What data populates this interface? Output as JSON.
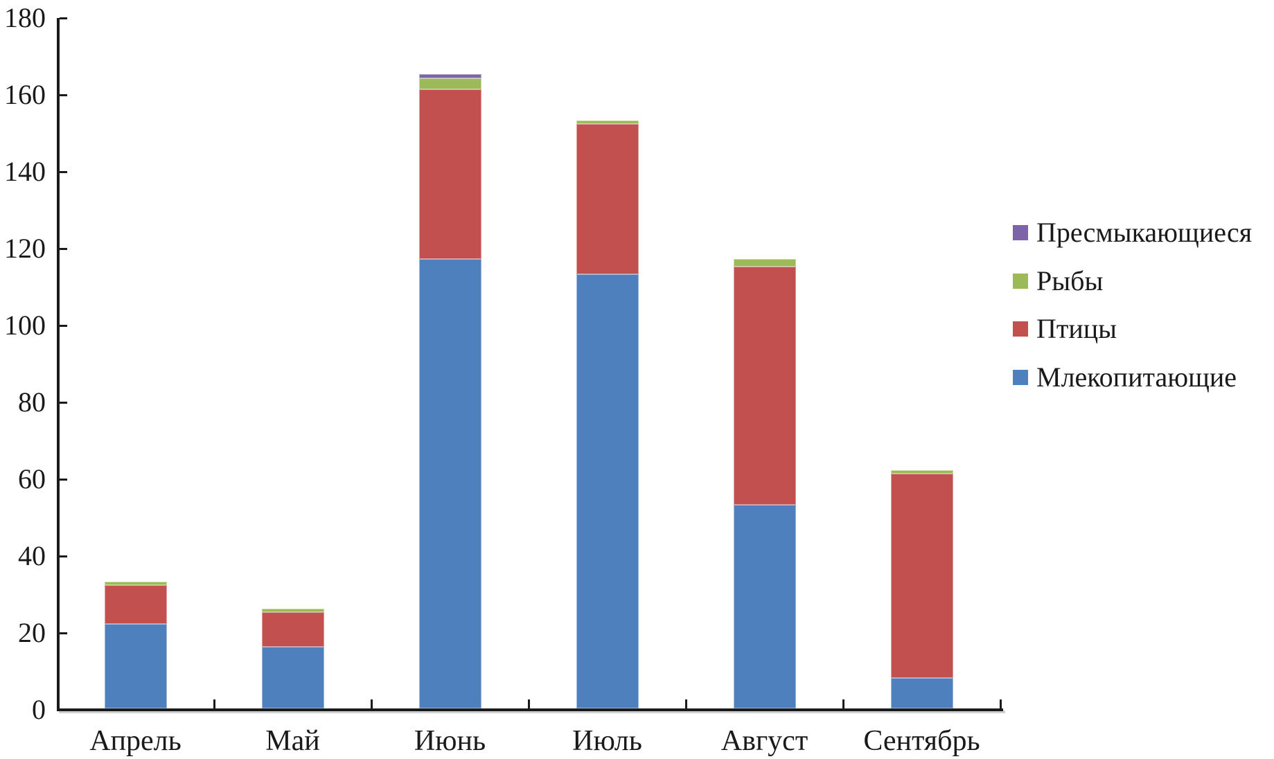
{
  "chart_data": {
    "type": "bar",
    "stacked": true,
    "title": "",
    "xlabel": "",
    "ylabel": "",
    "grid": false,
    "background": "#ffffff",
    "axis_color": "#1a1a1a",
    "text_color": "#1a1a1a",
    "categories": [
      "Апрель",
      "Май",
      "Июнь",
      "Июль",
      "Август",
      "Сентябрь"
    ],
    "series": [
      {
        "name": "Млекопитающие",
        "color": "#4E80BE",
        "values": [
          22,
          16,
          117,
          113,
          53,
          8
        ]
      },
      {
        "name": "Птицы",
        "color": "#C1504E",
        "values": [
          10,
          9,
          44,
          39,
          62,
          53
        ]
      },
      {
        "name": "Рыбы",
        "color": "#9CBB58",
        "values": [
          1,
          1,
          3,
          1,
          2,
          1
        ]
      },
      {
        "name": "Пресмыкающиеся",
        "color": "#7D64A8",
        "values": [
          0,
          0,
          1,
          0,
          0,
          0
        ]
      }
    ],
    "stack_totals": [
      33,
      26,
      165,
      153,
      117,
      62
    ],
    "y_axis": {
      "min": 0,
      "max": 180,
      "tick_step": 20,
      "tick_labels": [
        "0",
        "20",
        "40",
        "60",
        "80",
        "100",
        "120",
        "140",
        "160",
        "180"
      ]
    },
    "legend": {
      "position": "right",
      "order_top_to_bottom": [
        "Пресмыкающиеся",
        "Рыбы",
        "Птицы",
        "Млекопитающие"
      ]
    }
  }
}
